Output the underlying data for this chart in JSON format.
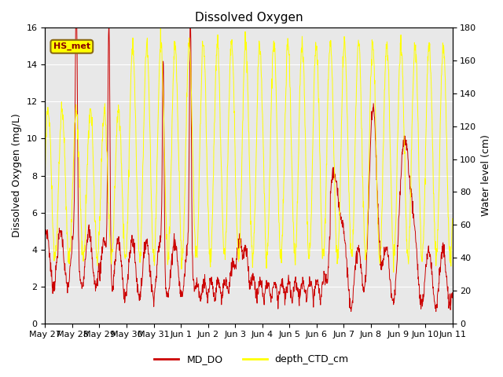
{
  "title": "Dissolved Oxygen",
  "ylabel_left": "Dissolved Oxygen (mg/L)",
  "ylabel_right": "Water level (cm)",
  "ylim_left": [
    0,
    16
  ],
  "ylim_right": [
    0,
    180
  ],
  "yticks_left": [
    0,
    2,
    4,
    6,
    8,
    10,
    12,
    14,
    16
  ],
  "yticks_right": [
    0,
    20,
    40,
    60,
    80,
    100,
    120,
    140,
    160,
    180
  ],
  "xtick_labels": [
    "May 27",
    "May 28",
    "May 29",
    "May 30",
    "May 31",
    "Jun 1",
    "Jun 2",
    "Jun 3",
    "Jun 4",
    "Jun 5",
    "Jun 6",
    "Jun 7",
    "Jun 8",
    "Jun 9",
    "Jun 10",
    "Jun 11"
  ],
  "color_DO": "#cc0000",
  "color_depth": "#ffff00",
  "legend_labels": [
    "MD_DO",
    "depth_CTD_cm"
  ],
  "annotation_text": "HS_met",
  "annotation_box_color": "#ffff00",
  "annotation_box_edge": "#8b6914",
  "background_color": "#e8e8e8",
  "grid_color": "#ffffff",
  "title_fontsize": 11,
  "label_fontsize": 9,
  "tick_fontsize": 8
}
